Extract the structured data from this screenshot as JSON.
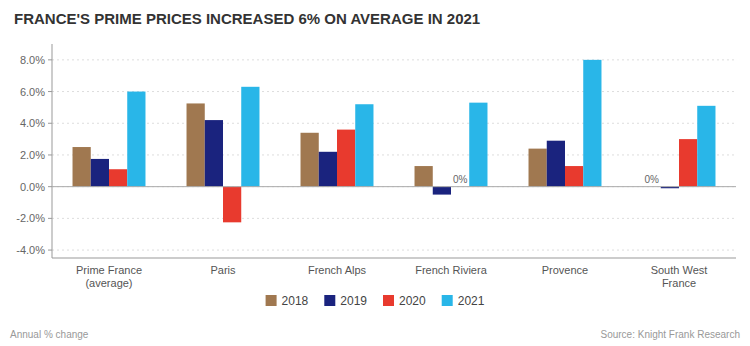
{
  "chart_data": {
    "type": "bar",
    "title": "FRANCE'S PRIME PRICES INCREASED 6% ON AVERAGE IN 2021",
    "categories": [
      "Prime France\n(average)",
      "Paris",
      "French Alps",
      "French Riviera",
      "Provence",
      "South West\nFrance"
    ],
    "series": [
      {
        "name": "2018",
        "color": "#A07850",
        "values": [
          2.5,
          5.25,
          3.4,
          1.3,
          2.4,
          0.0
        ]
      },
      {
        "name": "2019",
        "color": "#1A237E",
        "values": [
          1.75,
          4.2,
          2.2,
          -0.5,
          2.9,
          -0.1
        ]
      },
      {
        "name": "2020",
        "color": "#E83A2E",
        "values": [
          1.1,
          -2.25,
          3.6,
          0.0,
          1.3,
          3.0
        ]
      },
      {
        "name": "2021",
        "color": "#29B6E8",
        "values": [
          6.0,
          6.3,
          5.2,
          5.3,
          8.0,
          5.1
        ]
      }
    ],
    "ylim": [
      -4.5,
      9.0
    ],
    "yticks": [
      {
        "value": -4.0,
        "label": "-4.0%"
      },
      {
        "value": -2.0,
        "label": "-2.0%"
      },
      {
        "value": 0.0,
        "label": "0.0%"
      },
      {
        "value": 2.0,
        "label": "2.0%"
      },
      {
        "value": 4.0,
        "label": "4.0%"
      },
      {
        "value": 6.0,
        "label": "6.0%"
      },
      {
        "value": 8.0,
        "label": "8.0%"
      }
    ],
    "ylabel": "Annual % change",
    "annotations": [
      {
        "text": "0%",
        "series": "2020",
        "category": "French Riviera"
      },
      {
        "text": "0%",
        "series": "2018",
        "category": "South West\nFrance"
      },
      {
        "text": "Source: Knight Frank Research"
      }
    ],
    "grid": true,
    "legend": "bottom"
  }
}
